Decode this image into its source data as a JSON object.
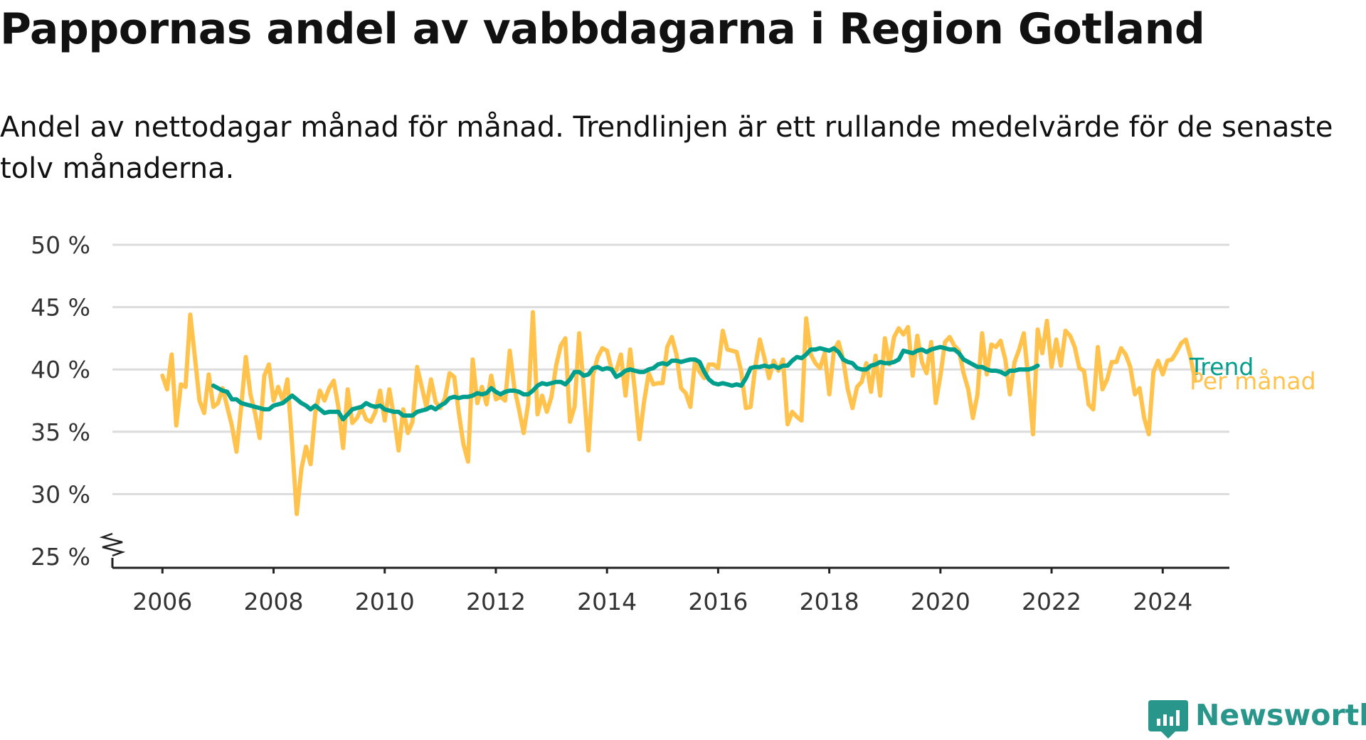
{
  "title": "Pappornas andel av vabbdagarna i Region Gotland",
  "subtitle": "Andel av nettodagar månad för månad. Trendlinjen är ett rullande medelvärde för de senaste tolv månaderna.",
  "brand": {
    "name": "Newsworthy",
    "color": "#29968c",
    "icon": "newsworthy-logo-icon"
  },
  "chart_data": {
    "type": "line",
    "title": "Pappornas andel av vabbdagarna i Region Gotland",
    "xlabel": "",
    "ylabel": "",
    "ylim": [
      25,
      50
    ],
    "xlim": [
      2005.1,
      2025.2
    ],
    "grid": true,
    "axis_break": true,
    "yticks": [
      25,
      30,
      35,
      40,
      45,
      50
    ],
    "ytick_labels": [
      "25 %",
      "30 %",
      "35 %",
      "40 %",
      "45 %",
      "50 %"
    ],
    "xticks": [
      2006,
      2008,
      2010,
      2012,
      2014,
      2016,
      2018,
      2020,
      2022,
      2024
    ],
    "xtick_labels": [
      "2006",
      "2008",
      "2010",
      "2012",
      "2014",
      "2016",
      "2018",
      "2020",
      "2022",
      "2024"
    ],
    "series": [
      {
        "name": "Per månad",
        "color": "#ffc34d",
        "start": 2006,
        "step": 0.0833333,
        "values": [
          39.5,
          38.4,
          41.2,
          35.5,
          38.8,
          38.6,
          44.4,
          41.0,
          37.5,
          36.5,
          39.6,
          37.0,
          37.3,
          38.5,
          37.0,
          35.5,
          33.4,
          37.0,
          41.0,
          38.0,
          36.5,
          34.5,
          39.5,
          40.4,
          37.5,
          38.6,
          37.5,
          39.2,
          34.0,
          28.4,
          32.0,
          33.8,
          32.4,
          36.5,
          38.3,
          37.5,
          38.5,
          39.1,
          37.0,
          33.7,
          38.4,
          35.7,
          36.1,
          36.9,
          36.0,
          35.8,
          36.6,
          38.3,
          35.9,
          38.4,
          36.2,
          33.5,
          36.8,
          34.9,
          35.8,
          40.2,
          38.6,
          37.0,
          39.2,
          37.4,
          36.9,
          37.7,
          39.7,
          39.4,
          36.5,
          34.0,
          32.6,
          40.8,
          37.3,
          38.6,
          37.2,
          39.5,
          37.6,
          37.8,
          37.5,
          41.5,
          38.5,
          36.8,
          34.9,
          37.3,
          44.6,
          36.4,
          37.9,
          36.6,
          37.8,
          40.3,
          41.9,
          42.5,
          35.8,
          37.0,
          42.9,
          38.4,
          33.5,
          39.6,
          41.0,
          41.7,
          41.5,
          40.0,
          39.9,
          41.2,
          37.9,
          41.6,
          38.4,
          34.4,
          37.4,
          39.7,
          38.8,
          38.9,
          38.9,
          41.8,
          42.6,
          41.2,
          38.5,
          38.1,
          37.0,
          40.6,
          39.8,
          39.3,
          40.4,
          40.4,
          40.1,
          43.1,
          41.6,
          41.5,
          41.4,
          39.8,
          36.9,
          37.0,
          40.2,
          42.4,
          40.9,
          39.3,
          40.7,
          39.9,
          40.8,
          35.6,
          36.6,
          36.2,
          35.9,
          44.1,
          41.2,
          40.5,
          40.1,
          41.3,
          38.0,
          41.5,
          42.2,
          40.8,
          38.4,
          36.9,
          38.6,
          39.0,
          40.5,
          38.2,
          41.1,
          37.9,
          42.5,
          40.4,
          42.6,
          43.3,
          42.8,
          43.4,
          39.5,
          42.7,
          40.6,
          39.7,
          42.2,
          37.3,
          39.5,
          42.2,
          42.6,
          41.9,
          41.5,
          39.7,
          38.4,
          36.1,
          38.0,
          42.9,
          39.6,
          42.0,
          41.8,
          42.3,
          40.8,
          38.0,
          40.6,
          41.6,
          42.9,
          39.1,
          34.8,
          43.2,
          41.3,
          43.9,
          40.2,
          42.4,
          40.3,
          43.1,
          42.7,
          41.8,
          40.1,
          39.9,
          37.2,
          36.8,
          41.8,
          38.4,
          39.2,
          40.6,
          40.6,
          41.7,
          41.2,
          40.2,
          38.0,
          38.5,
          36.1,
          34.8,
          39.8,
          40.7,
          39.6,
          40.7,
          40.8,
          41.4,
          42.1,
          42.4,
          41.0,
          39.1
        ]
      },
      {
        "name": "Trend",
        "color": "#009e8c",
        "start": 2006.9167,
        "step": 0.0833333,
        "values": [
          38.7,
          38.5,
          38.3,
          38.2,
          37.6,
          37.6,
          37.3,
          37.2,
          37.1,
          37.0,
          36.9,
          36.8,
          36.8,
          37.1,
          37.2,
          37.3,
          37.6,
          37.9,
          37.6,
          37.3,
          37.1,
          36.8,
          37.1,
          36.8,
          36.5,
          36.6,
          36.6,
          36.6,
          36.0,
          36.4,
          36.8,
          36.9,
          37.0,
          37.3,
          37.1,
          37.0,
          37.1,
          36.8,
          36.7,
          36.6,
          36.6,
          36.3,
          36.3,
          36.3,
          36.6,
          36.7,
          36.8,
          37.0,
          36.8,
          37.1,
          37.3,
          37.7,
          37.8,
          37.7,
          37.8,
          37.8,
          37.9,
          38.1,
          38.0,
          38.1,
          38.5,
          38.2,
          38.0,
          38.2,
          38.3,
          38.3,
          38.2,
          38.0,
          38.0,
          38.3,
          38.7,
          38.9,
          38.8,
          38.9,
          39.0,
          39.0,
          38.8,
          39.2,
          39.8,
          39.8,
          39.5,
          39.6,
          40.1,
          40.2,
          40.0,
          40.1,
          40.0,
          39.4,
          39.6,
          39.9,
          40.0,
          39.9,
          39.8,
          39.8,
          40.0,
          40.1,
          40.4,
          40.5,
          40.4,
          40.7,
          40.7,
          40.6,
          40.7,
          40.8,
          40.8,
          40.6,
          39.8,
          39.2,
          38.9,
          38.8,
          38.9,
          38.8,
          38.7,
          38.8,
          38.7,
          39.3,
          40.1,
          40.2,
          40.2,
          40.3,
          40.2,
          40.3,
          40.1,
          40.3,
          40.3,
          40.7,
          41.0,
          40.9,
          41.2,
          41.6,
          41.6,
          41.7,
          41.6,
          41.5,
          41.7,
          41.4,
          40.8,
          40.6,
          40.5,
          40.1,
          40.0,
          40.0,
          40.3,
          40.4,
          40.6,
          40.5,
          40.5,
          40.6,
          40.8,
          41.5,
          41.4,
          41.3,
          41.5,
          41.6,
          41.4,
          41.6,
          41.7,
          41.8,
          41.7,
          41.6,
          41.6,
          41.3,
          40.8,
          40.6,
          40.4,
          40.2,
          40.2,
          40.0,
          39.9,
          39.9,
          39.8,
          39.6,
          39.9,
          39.9,
          40.0,
          40.0,
          40.0,
          40.1,
          40.3
        ]
      }
    ]
  }
}
